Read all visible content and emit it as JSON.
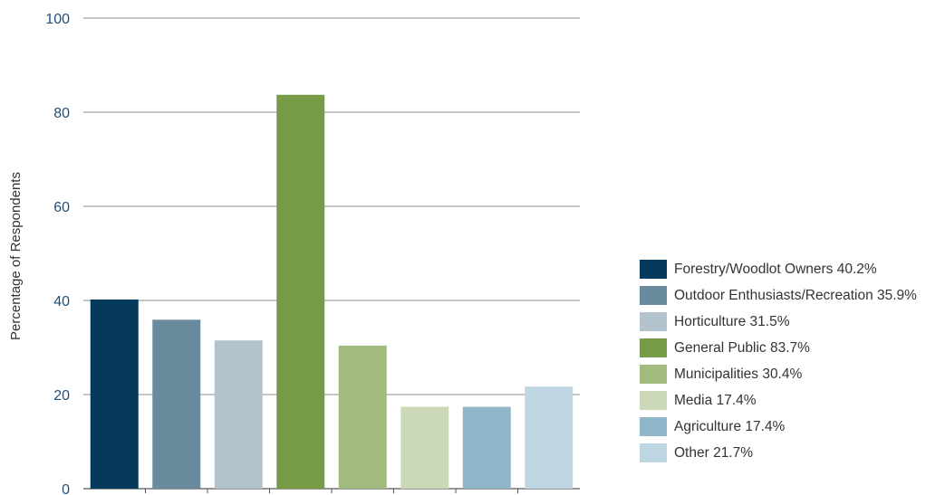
{
  "chart_data": {
    "type": "bar",
    "title": "",
    "xlabel": "",
    "ylabel": "Percentage of Respondents",
    "ylim": [
      0,
      100
    ],
    "yticks": [
      0,
      20,
      40,
      60,
      80,
      100
    ],
    "grid": true,
    "legend_position": "right",
    "categories": [
      "Forestry/Woodlot Owners",
      "Outdoor Enthusiasts/Recreation",
      "Horticulture",
      "General Public",
      "Municipalities",
      "Media",
      "Agriculture",
      "Other"
    ],
    "values": [
      40.2,
      35.9,
      31.5,
      83.7,
      30.4,
      17.4,
      17.4,
      21.7
    ],
    "colors": [
      "#053a5c",
      "#6a8a9e",
      "#b3c3cd",
      "#789b48",
      "#a2bb7f",
      "#ccd9b8",
      "#8fb6c9",
      "#bed6e1"
    ],
    "legend": [
      "Forestry/Woodlot Owners 40.2%",
      "Outdoor Enthusiasts/Recreation 35.9%",
      "Horticulture 31.5%",
      "General Public 83.7%",
      "Municipalities 30.4%",
      "Media 17.4%",
      "Agriculture 17.4%",
      "Other 21.7%"
    ]
  }
}
